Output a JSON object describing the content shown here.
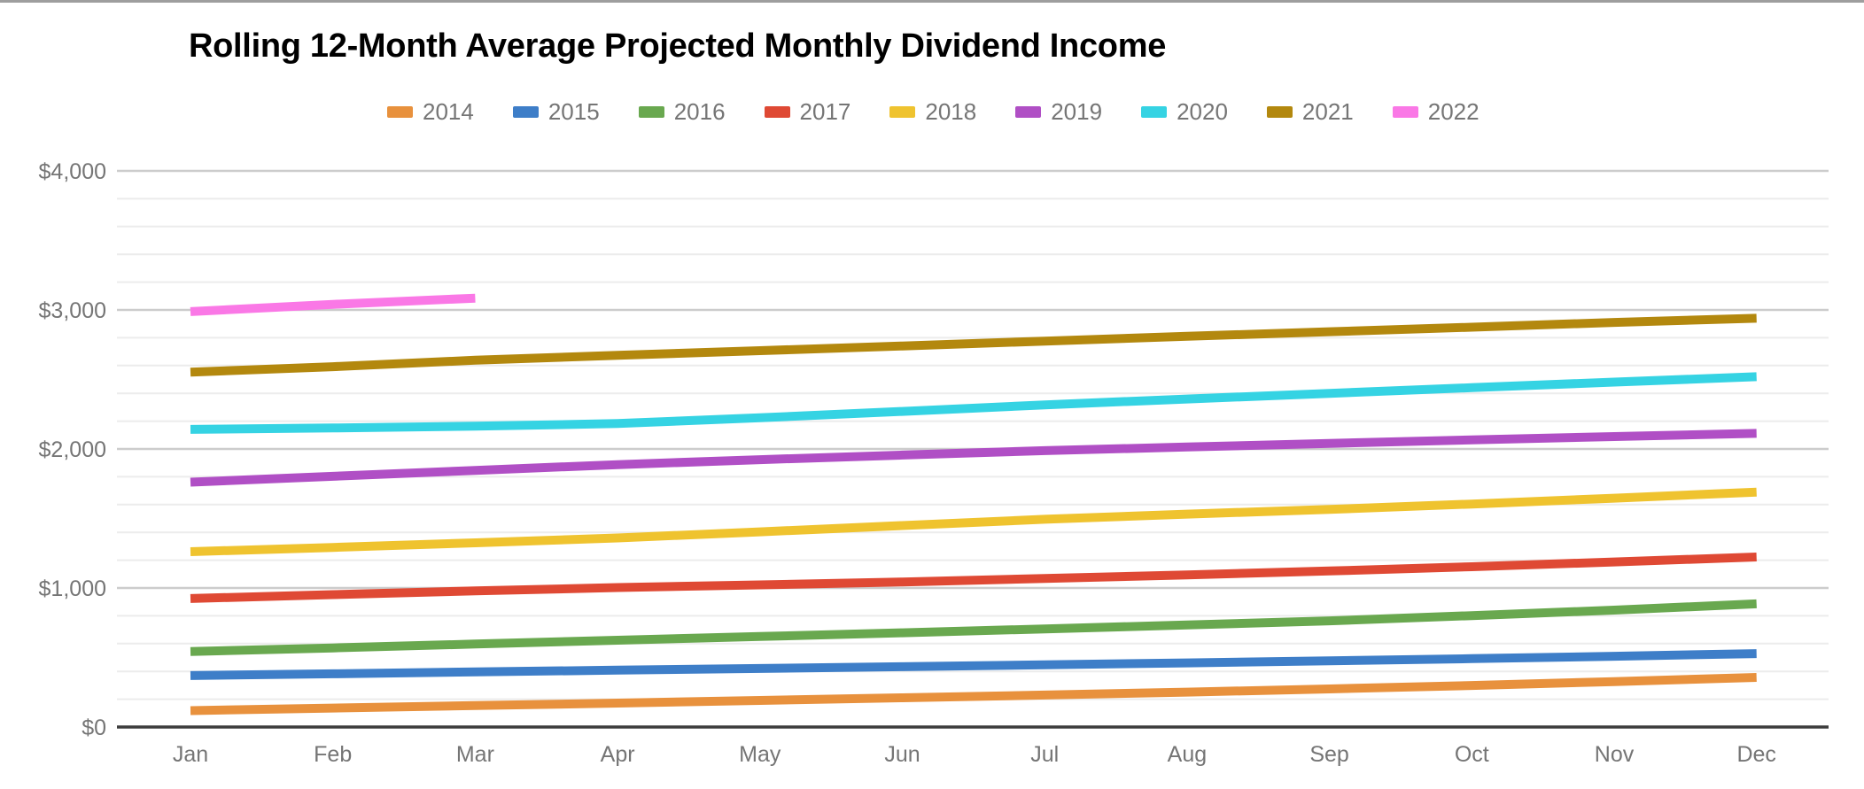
{
  "chart_data": {
    "type": "line",
    "title": "Rolling 12-Month Average Projected Monthly Dividend Income",
    "xlabel": "",
    "ylabel": "",
    "categories": [
      "Jan",
      "Feb",
      "Mar",
      "Apr",
      "May",
      "Jun",
      "Jul",
      "Aug",
      "Sep",
      "Oct",
      "Nov",
      "Dec"
    ],
    "y_axis": {
      "ylim": [
        0,
        4000
      ],
      "major_step": 1000,
      "minor_step": 200,
      "ticks": [
        {
          "value": 0,
          "label": "$0"
        },
        {
          "value": 1000,
          "label": "$1,000"
        },
        {
          "value": 2000,
          "label": "$2,000"
        },
        {
          "value": 3000,
          "label": "$3,000"
        },
        {
          "value": 4000,
          "label": "$4,000"
        }
      ]
    },
    "grid": true,
    "legend_position": "top",
    "series": [
      {
        "name": "2014",
        "color": "#E8913D",
        "values": [
          118,
          136,
          154,
          172,
          191,
          210,
          230,
          251,
          274,
          299,
          327,
          357
        ]
      },
      {
        "name": "2015",
        "color": "#3E7EC8",
        "values": [
          370,
          383,
          396,
          409,
          421,
          434,
          447,
          461,
          476,
          492,
          509,
          528
        ]
      },
      {
        "name": "2016",
        "color": "#69A84F",
        "values": [
          543,
          569,
          597,
          624,
          651,
          678,
          706,
          734,
          764,
          801,
          841,
          886
        ]
      },
      {
        "name": "2017",
        "color": "#DF4934",
        "values": [
          924,
          952,
          979,
          1003,
          1022,
          1043,
          1068,
          1094,
          1122,
          1153,
          1187,
          1223
        ]
      },
      {
        "name": "2018",
        "color": "#EFC32F",
        "values": [
          1261,
          1292,
          1325,
          1360,
          1404,
          1449,
          1494,
          1531,
          1565,
          1604,
          1646,
          1690
        ]
      },
      {
        "name": "2019",
        "color": "#B04FC5",
        "values": [
          1761,
          1803,
          1846,
          1887,
          1923,
          1956,
          1988,
          2014,
          2040,
          2065,
          2089,
          2112
        ]
      },
      {
        "name": "2020",
        "color": "#35D3E3",
        "values": [
          2141,
          2151,
          2164,
          2183,
          2224,
          2270,
          2317,
          2359,
          2400,
          2441,
          2481,
          2520
        ]
      },
      {
        "name": "2021",
        "color": "#B3880E",
        "values": [
          2552,
          2592,
          2638,
          2673,
          2707,
          2741,
          2776,
          2810,
          2843,
          2876,
          2910,
          2940
        ]
      },
      {
        "name": "2022",
        "color": "#FA78E6",
        "values": [
          2988,
          3040,
          3085
        ]
      }
    ],
    "colors": {
      "title_text": "#000000",
      "axis_text": "#757575",
      "legend_text": "#757575",
      "zero_axis_line": "#3c3c3c",
      "major_gridline": "#cccccc",
      "minor_gridline": "#ececec",
      "background": "#ffffff",
      "top_edge_strip": "#9e9e9e"
    }
  }
}
